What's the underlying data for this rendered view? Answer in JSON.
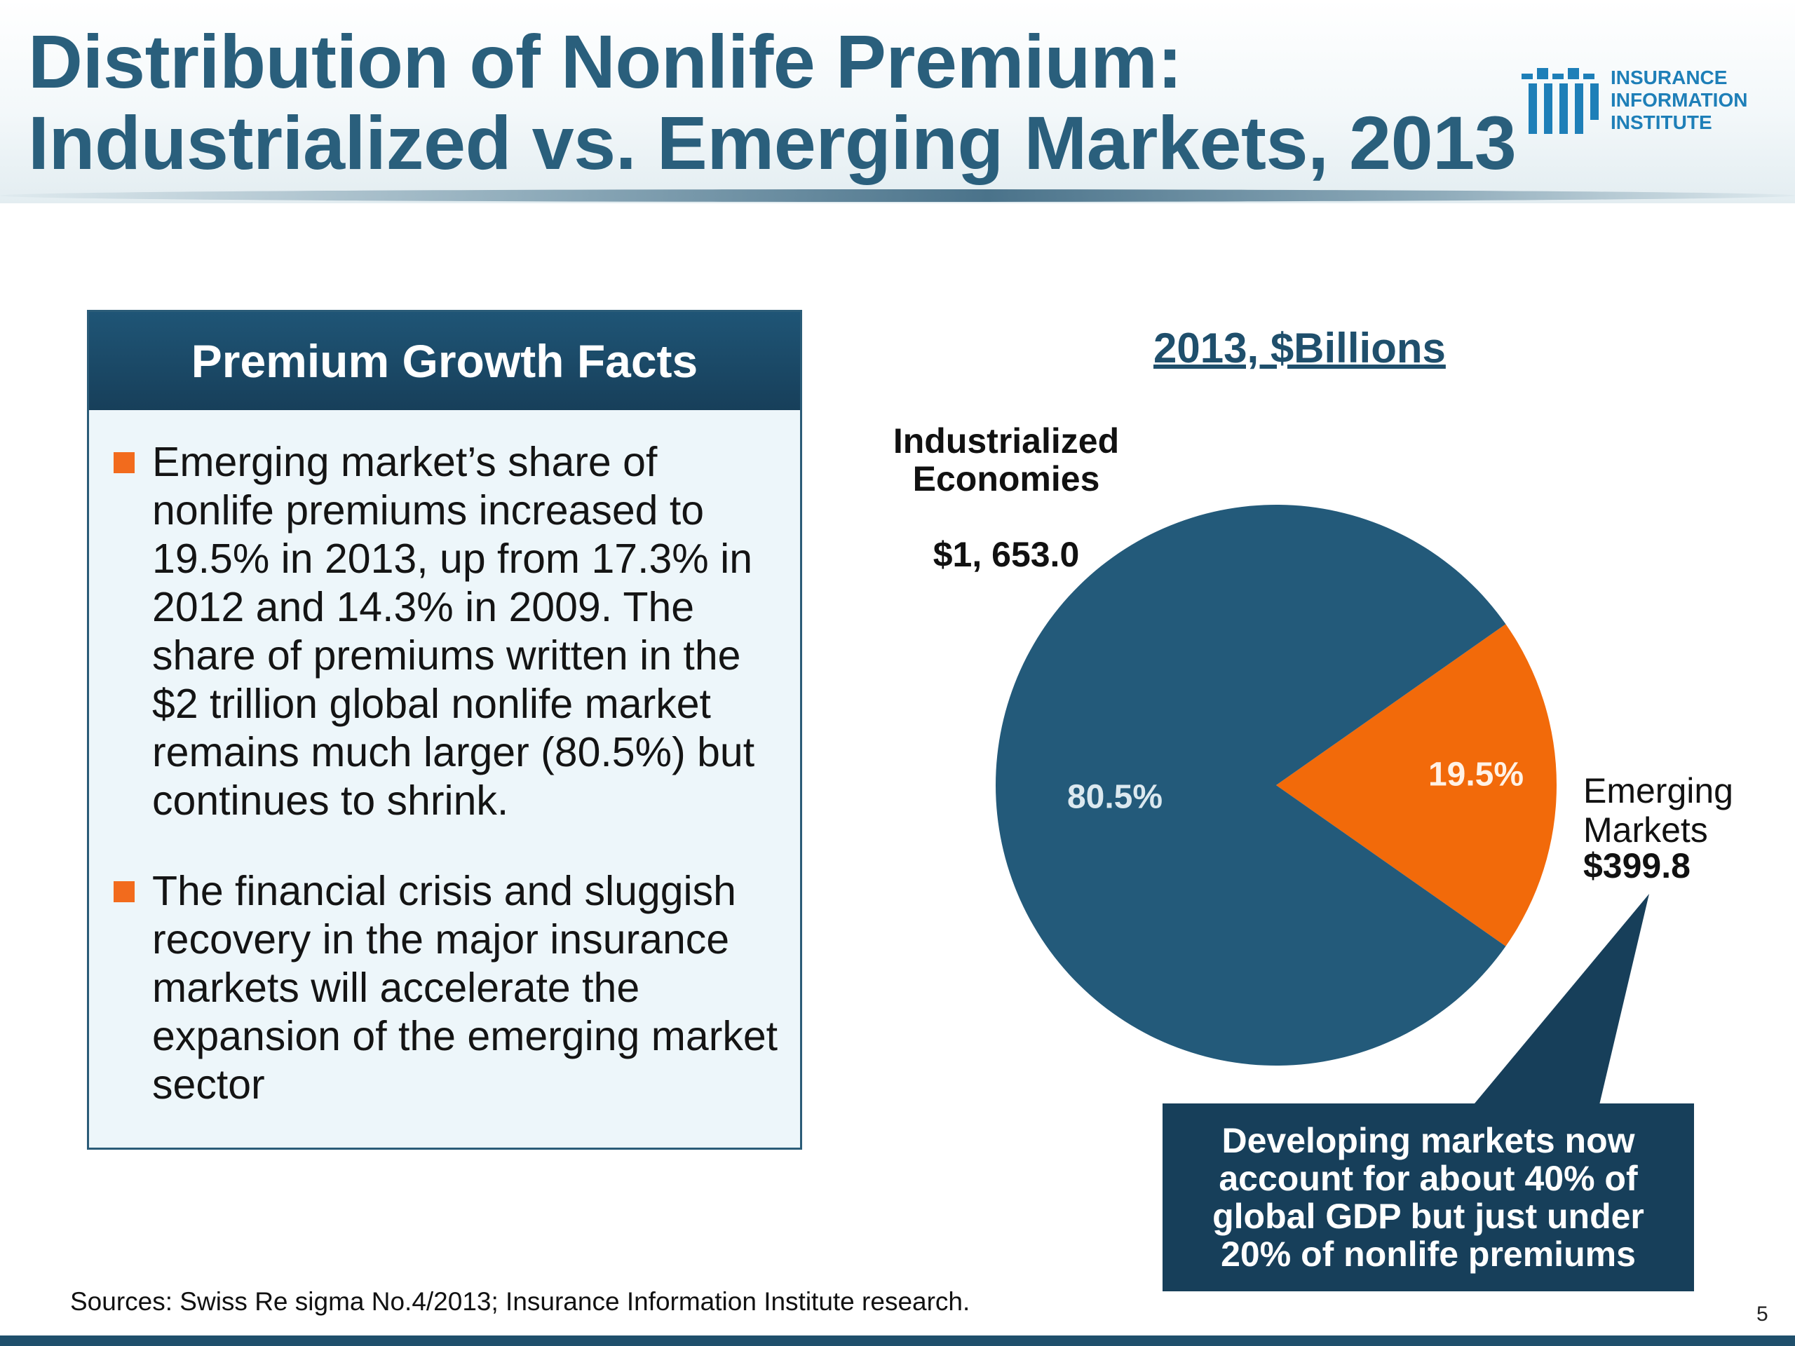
{
  "header": {
    "title_line1": "Distribution of Nonlife Premium:",
    "title_line2": "Industrialized vs. Emerging Markets, 2013",
    "logo_text": "INSURANCE\nINFORMATION\nINSTITUTE"
  },
  "facts": {
    "heading": "Premium Growth Facts",
    "items": [
      "Emerging market’s share of nonlife premiums increased to 19.5% in 2013, up from 17.3% in 2012 and 14.3% in 2009. The share of premiums written in the $2 trillion global nonlife market remains much larger (80.5%) but continues to shrink.",
      "The financial crisis and sluggish recovery in the major insurance markets will accelerate the expansion of the emerging market sector"
    ]
  },
  "chart_data": {
    "type": "pie",
    "title": "2013, $Billions",
    "slices": [
      {
        "name": "Industrialized Economies",
        "value": 1653.0,
        "value_label": "$1, 653.0",
        "percent": 80.5,
        "percent_label": "80.5%",
        "color": "#235a7a"
      },
      {
        "name": "Emerging Markets",
        "name_label": "Emerging\nMarkets",
        "value": 399.8,
        "value_label": "$399.8",
        "percent": 19.5,
        "percent_label": "19.5%",
        "color": "#f26a0a"
      }
    ]
  },
  "callout": {
    "text": "Developing markets now account for about 40% of global GDP but just under 20% of nonlife premiums"
  },
  "footer": {
    "sources": "Sources: Swiss Re sigma No.4/2013; Insurance Information Institute research.",
    "page_number": "5"
  },
  "colors": {
    "title": "#2a5f7c",
    "navy": "#173f5a",
    "bullet": "#f26b1d"
  }
}
